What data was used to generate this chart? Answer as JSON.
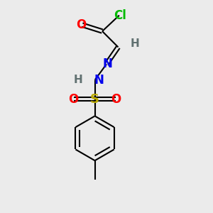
{
  "bg_color": "#ebebeb",
  "bond_color": "#000000",
  "bond_lw": 1.5,
  "Cl_color": "#00bb00",
  "O_color": "#ff0000",
  "N_color": "#0000ee",
  "S_color": "#bbaa00",
  "H_color": "#607070",
  "font_size": 11,
  "double_sep": 0.1,
  "figsize": [
    3.0,
    3.0
  ],
  "dpi": 100,
  "xlim": [
    0,
    10
  ],
  "ylim": [
    0,
    10
  ]
}
